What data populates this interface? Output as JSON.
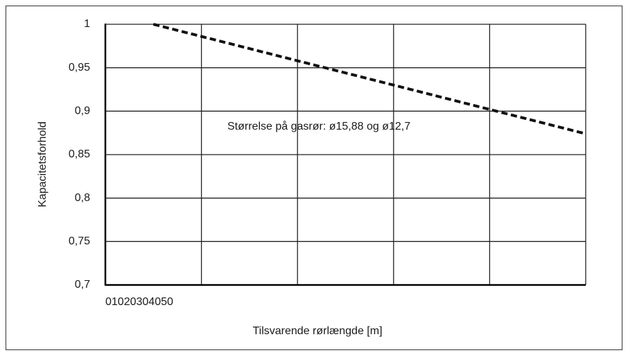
{
  "chart_data": {
    "type": "line",
    "x_label": "Tilsvarende rørlængde [m]",
    "y_label": "Kapacitetsforhold",
    "annotation": "Størrelse på gasrør: ø15,88 og ø12,7",
    "x": [
      5,
      10,
      20,
      30,
      40,
      50
    ],
    "series": [
      {
        "color": "#111111",
        "dashed": true,
        "values": [
          1,
          0.986,
          0.958,
          0.93,
          0.902,
          0.874
        ]
      }
    ],
    "xlim": [
      0,
      50
    ],
    "xticks": [
      0,
      10,
      20,
      30,
      40,
      50
    ],
    "ylim": [
      0.7,
      1
    ],
    "yticks": [
      {
        "value": 0.7,
        "label": "0,7"
      },
      {
        "value": 0.75,
        "label": "0,75"
      },
      {
        "value": 0.8,
        "label": "0,8"
      },
      {
        "value": 0.85,
        "label": "0,85"
      },
      {
        "value": 0.9,
        "label": "0,9"
      },
      {
        "value": 0.95,
        "label": "0,95"
      },
      1
    ],
    "grid": true
  }
}
